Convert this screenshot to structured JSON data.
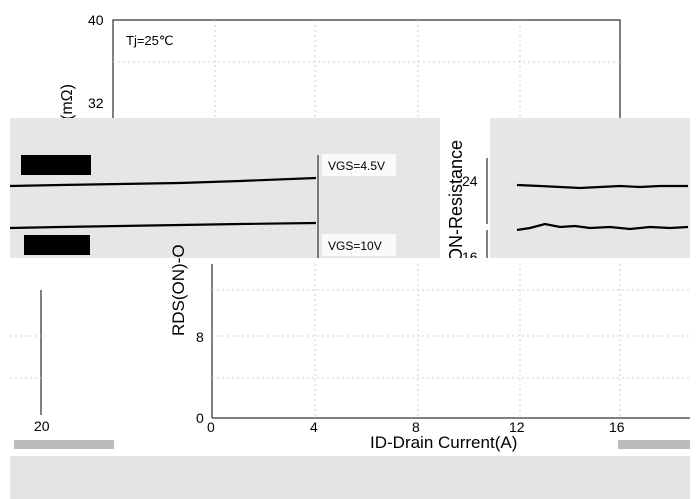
{
  "chart_data": {
    "type": "line",
    "annotation": "Tj=25℃",
    "xlabel": "ID-Drain Current(A)",
    "ylabel_fragment": "(mΩ)",
    "ylabel_side": "ON-Resistance",
    "ylabel_main": "RDS(ON)-O",
    "x_ticks": [
      "0",
      "4",
      "8",
      "12",
      "16"
    ],
    "y_ticks": [
      "0",
      "8",
      "32",
      "40"
    ],
    "extra_ticks": [
      "20",
      "24",
      "16"
    ],
    "legend": [
      "VGS=4.5V",
      "VGS=10V"
    ],
    "xlim": [
      0,
      20
    ],
    "ylim": [
      0,
      40
    ],
    "series": [
      {
        "name": "VGS=4.5V",
        "x": [
          0,
          2,
          4,
          6,
          8,
          10,
          12,
          14,
          16,
          18,
          20
        ],
        "y": [
          26.5,
          26.6,
          26.8,
          27.0,
          27.2,
          27.4,
          27.6,
          27.7,
          27.6,
          27.7,
          27.8
        ]
      },
      {
        "name": "VGS=10V",
        "x": [
          0,
          2,
          4,
          6,
          8,
          10,
          12,
          14,
          16,
          18,
          20
        ],
        "y": [
          19.8,
          19.9,
          20.0,
          20.1,
          20.2,
          20.2,
          20.3,
          20.3,
          20.2,
          20.3,
          20.3
        ]
      }
    ]
  }
}
